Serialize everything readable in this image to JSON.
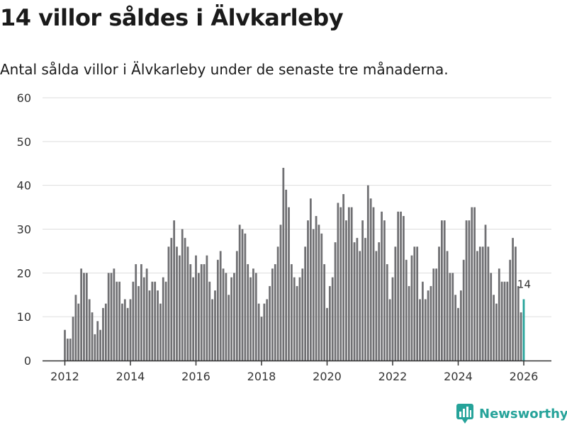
{
  "header": {
    "title": "14 villor såldes i Älvkarleby",
    "subtitle": "Antal sålda villor i Älvkarleby under de senaste tre månaderna."
  },
  "brand": {
    "name": "Newsworthy"
  },
  "colors": {
    "bar": "#707073",
    "highlight": "#26a39a",
    "grid": "#dddddd",
    "axis": "#333333"
  },
  "chart_data": {
    "type": "bar",
    "title": "14 villor såldes i Älvkarleby",
    "subtitle": "Antal sålda villor i Älvkarleby under de senaste tre månaderna.",
    "xlabel": "",
    "ylabel": "",
    "ylim": [
      0,
      60
    ],
    "yticks": [
      0,
      10,
      20,
      30,
      40,
      50,
      60
    ],
    "xticks": [
      2012,
      2014,
      2016,
      2018,
      2020,
      2022,
      2024,
      2026
    ],
    "x_start": 2012,
    "x_step": 0.08333,
    "grid": true,
    "highlight_label": "14",
    "values": [
      7,
      5,
      5,
      10,
      15,
      13,
      21,
      20,
      20,
      14,
      11,
      6,
      9,
      7,
      12,
      13,
      20,
      20,
      21,
      18,
      18,
      13,
      14,
      12,
      14,
      18,
      22,
      17,
      22,
      19,
      21,
      16,
      18,
      18,
      16,
      13,
      19,
      18,
      26,
      28,
      32,
      26,
      24,
      30,
      28,
      26,
      22,
      19,
      24,
      20,
      22,
      22,
      24,
      18,
      14,
      16,
      23,
      25,
      21,
      20,
      15,
      19,
      20,
      25,
      31,
      30,
      29,
      22,
      19,
      21,
      20,
      13,
      10,
      13,
      14,
      17,
      21,
      22,
      26,
      31,
      44,
      39,
      35,
      22,
      19,
      17,
      19,
      21,
      26,
      32,
      37,
      30,
      33,
      31,
      29,
      22,
      12,
      17,
      19,
      27,
      36,
      35,
      38,
      32,
      35,
      35,
      27,
      28,
      25,
      32,
      28,
      40,
      37,
      35,
      25,
      27,
      34,
      32,
      22,
      14,
      19,
      26,
      34,
      34,
      33,
      23,
      17,
      24,
      26,
      26,
      14,
      18,
      14,
      16,
      17,
      21,
      21,
      26,
      32,
      32,
      25,
      20,
      20,
      15,
      12,
      16,
      23,
      32,
      32,
      35,
      35,
      25,
      26,
      26,
      31,
      26,
      20,
      15,
      13,
      21,
      18,
      18,
      18,
      23,
      28,
      26,
      17,
      11,
      14
    ]
  }
}
